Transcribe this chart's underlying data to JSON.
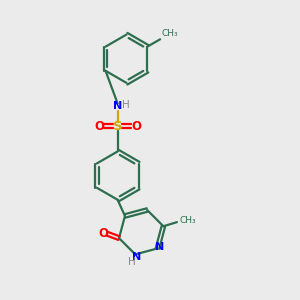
{
  "bg_color": "#ebebeb",
  "bond_color": "#2d6e4e",
  "n_color": "#0000ff",
  "o_color": "#ff0000",
  "s_color": "#ccaa00",
  "h_color": "#888888",
  "line_width": 1.6,
  "figsize": [
    3.0,
    3.0
  ],
  "dpi": 100,
  "xlim": [
    0,
    10
  ],
  "ylim": [
    0,
    10
  ]
}
